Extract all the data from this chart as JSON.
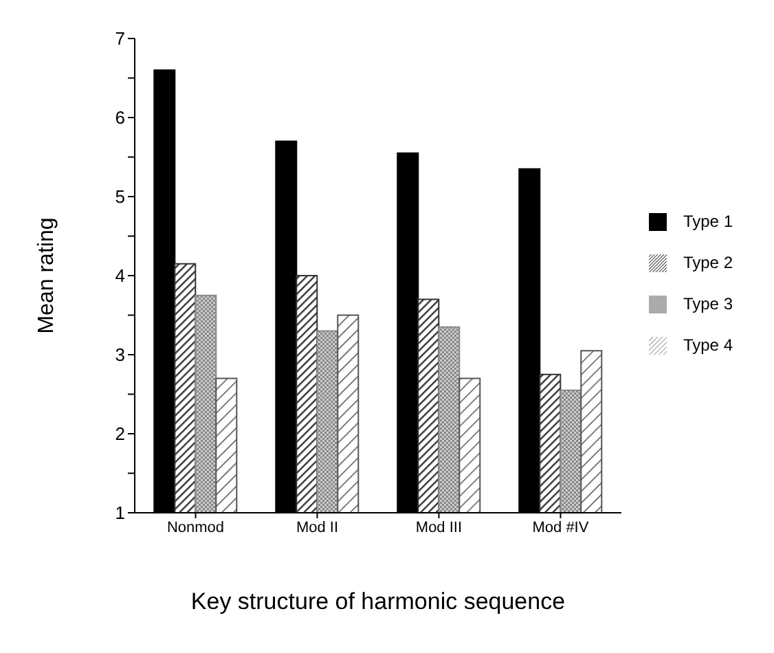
{
  "chart_data": {
    "type": "bar",
    "xlabel": "Key structure of harmonic sequence",
    "ylabel": "Mean rating",
    "categories": [
      "Nonmod",
      "Mod II",
      "Mod III",
      "Mod #IV"
    ],
    "series": [
      {
        "name": "Type 1",
        "color": "#000000",
        "values": [
          6.6,
          5.7,
          5.55,
          5.35
        ]
      },
      {
        "name": "Type 2",
        "color": "#333333",
        "values": [
          4.15,
          4.0,
          3.7,
          2.75
        ]
      },
      {
        "name": "Type 3",
        "color": "#888888",
        "values": [
          3.75,
          3.3,
          3.35,
          2.55
        ]
      },
      {
        "name": "Type 4",
        "color": "#555555",
        "values": [
          2.7,
          3.5,
          2.7,
          3.05
        ]
      }
    ],
    "ylim": [
      1,
      7
    ],
    "yticks": [
      1,
      {
        "value": 1.5,
        "label": null
      },
      2,
      {
        "value": 2.5,
        "label": null
      },
      3,
      {
        "value": 3.5,
        "label": null
      },
      4,
      {
        "value": 4.5,
        "label": null
      },
      5,
      {
        "value": 5.5,
        "label": null
      },
      6,
      {
        "value": 6.5,
        "label": null
      },
      7
    ],
    "legend": "right"
  }
}
